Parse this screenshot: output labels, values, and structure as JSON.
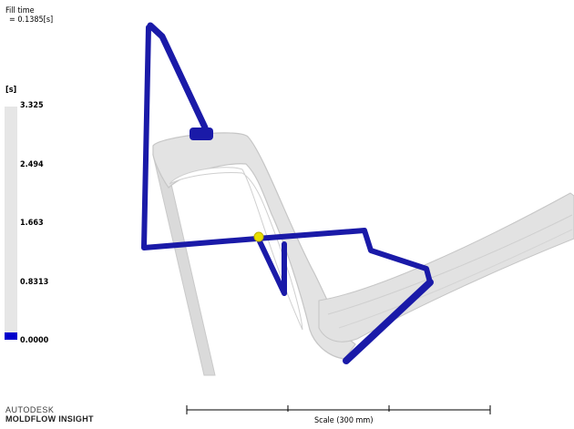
{
  "result": {
    "title": "Fill time",
    "value": "= 0.1385[s]"
  },
  "legend": {
    "units": "[s]",
    "ticks": [
      "3.325",
      "2.494",
      "1.663",
      "0.8313",
      "0.0000"
    ],
    "fill_color": "#0000cc",
    "bar_color": "#e6e6e6",
    "current_fill_fraction": 0.0417
  },
  "branding": {
    "line1": "AUTODESK",
    "line2": "MOLDFLOW",
    "line3": "INSIGHT"
  },
  "scale": {
    "label": "Scale (300 mm)"
  },
  "colors": {
    "runner": "#1a1aa8",
    "part": "#e1e1e1",
    "part_edge": "#c8c8c8",
    "injection_point": "#e8e000"
  }
}
